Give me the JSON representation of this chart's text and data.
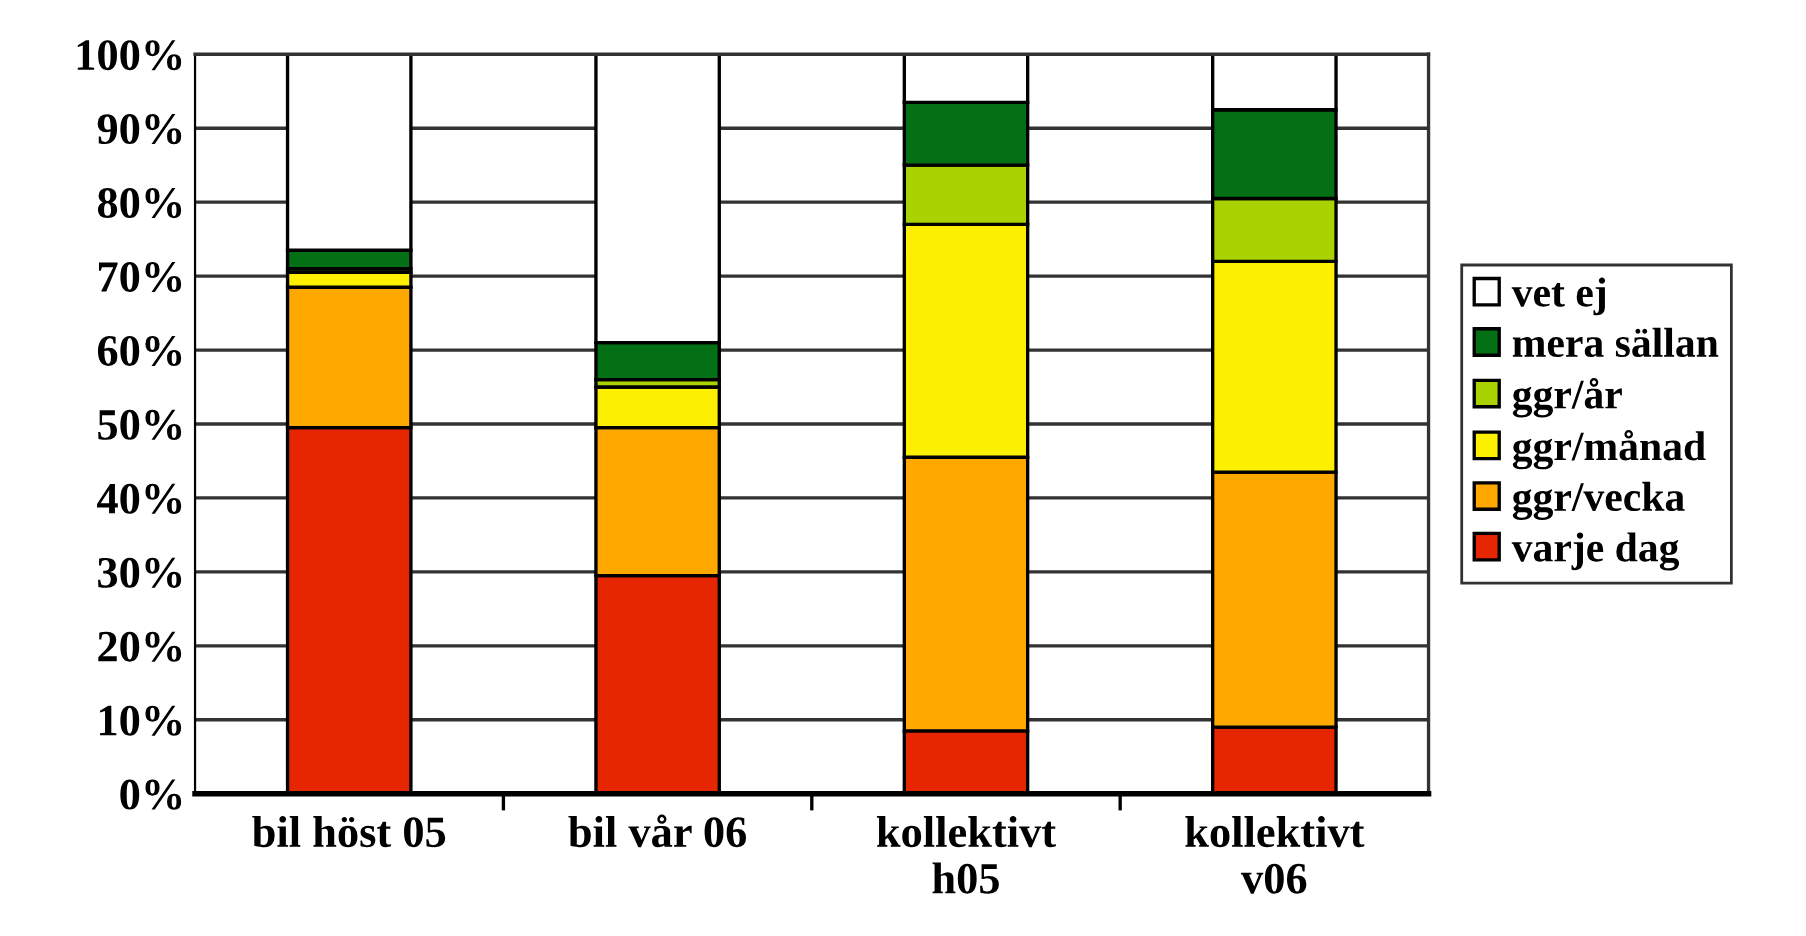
{
  "chart_data": {
    "type": "bar",
    "stacked": true,
    "categories": [
      "bil höst 05",
      "bil vår 06",
      "kollektivt\nh05",
      "kollektivt\nv06"
    ],
    "series": [
      {
        "name": "varje dag",
        "color": "#e52600",
        "values": [
          49.5,
          29.5,
          8.5,
          9
        ]
      },
      {
        "name": "ggr/vecka",
        "color": "#ffa800",
        "values": [
          19,
          20,
          37,
          34.5
        ]
      },
      {
        "name": "ggr/månad",
        "color": "#fcf000",
        "values": [
          2,
          5.5,
          31.5,
          28.5
        ]
      },
      {
        "name": "ggr/år",
        "color": "#aad200",
        "values": [
          0.5,
          1,
          8,
          8.5
        ]
      },
      {
        "name": "mera sällan",
        "color": "#037015",
        "values": [
          2.5,
          5,
          8.5,
          12
        ]
      },
      {
        "name": "vet ej",
        "color": "#ffffff",
        "values": [
          26.5,
          39,
          6.5,
          7.5
        ]
      }
    ],
    "ylim": [
      0,
      100
    ],
    "yticks": [
      {
        "value": 0,
        "label": "0%"
      },
      {
        "value": 10,
        "label": "10%"
      },
      {
        "value": 20,
        "label": "20%"
      },
      {
        "value": 30,
        "label": "30%"
      },
      {
        "value": 40,
        "label": "40%"
      },
      {
        "value": 50,
        "label": "50%"
      },
      {
        "value": 60,
        "label": "60%"
      },
      {
        "value": 70,
        "label": "70%"
      },
      {
        "value": 80,
        "label": "80%"
      },
      {
        "value": 90,
        "label": "90%"
      },
      {
        "value": 100,
        "label": "100%"
      }
    ],
    "grid": "y",
    "legend": "right"
  }
}
